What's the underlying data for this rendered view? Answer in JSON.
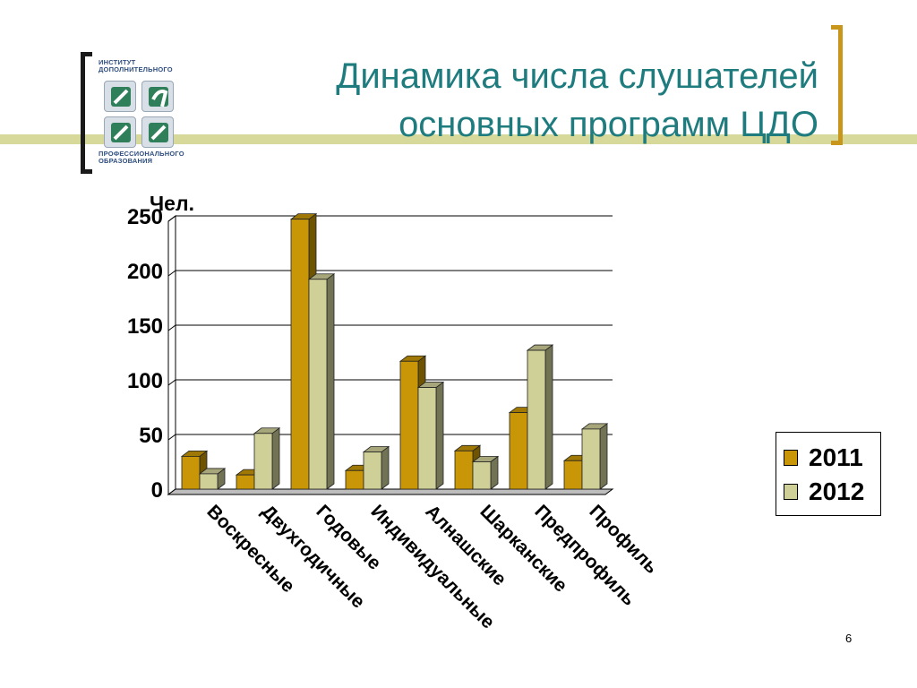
{
  "slide": {
    "title_line1": "Динамика числа слушателей",
    "title_line2": "основных программ ЦДО",
    "page_number": "6"
  },
  "logo": {
    "top_text_line1": "ИНСТИТУТ",
    "top_text_line2": "ДОПОЛНИТЕЛЬНОГО",
    "bottom_text_line1": "ПРОФЕССИОНАЛЬНОГО",
    "bottom_text_line2": "ОБРАЗОВАНИЯ"
  },
  "colors": {
    "title": "#1e7b7e",
    "stripe": "#d7d99a",
    "bracket_left": "#1a1a1a",
    "bracket_right": "#c7961a",
    "series_2011": "#c89606",
    "series_2012": "#cfcf98"
  },
  "chart_data": {
    "type": "bar",
    "style": "3d-clustered-column",
    "title": "",
    "ylabel": "Чел.",
    "xlabel": "",
    "ylim": [
      0,
      250
    ],
    "yticks": [
      0,
      50,
      100,
      150,
      200,
      250
    ],
    "grid": true,
    "legend_position": "right",
    "categories": [
      "Воскресные",
      "Двухгодичные",
      "Годовые",
      "Индивидуальные",
      "Алнашские",
      "Шарканские",
      "Предпрофиль",
      "Профиль"
    ],
    "series": [
      {
        "name": "2011",
        "values": [
          30,
          13,
          247,
          17,
          117,
          35,
          70,
          26
        ]
      },
      {
        "name": "2012",
        "values": [
          14,
          51,
          192,
          34,
          93,
          25,
          127,
          55
        ]
      }
    ]
  }
}
